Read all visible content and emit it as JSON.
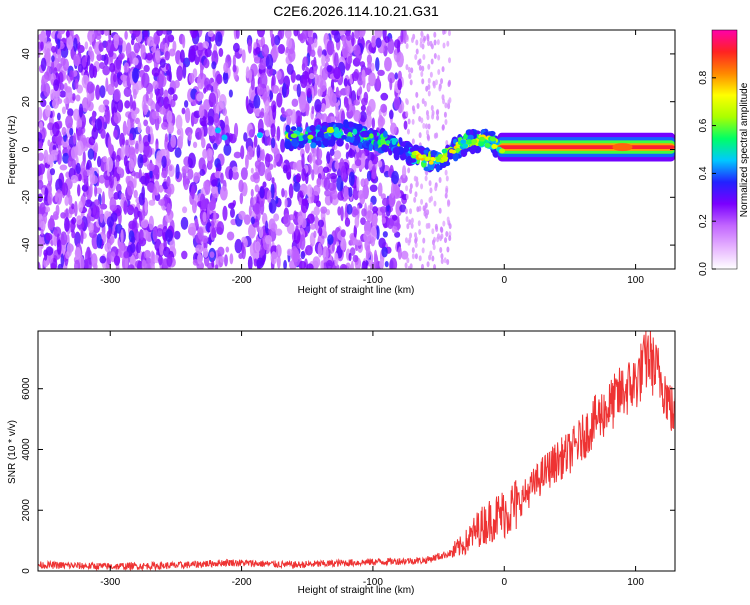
{
  "title": "C2E6.2026.114.10.21.G31",
  "chart_data": [
    {
      "type": "heatmap",
      "xlabel": "Height of straight line (km)",
      "ylabel": "Frequency (Hz)",
      "xlim": [
        -355,
        130
      ],
      "ylim": [
        -50,
        50
      ],
      "x_ticks": [
        -300,
        -200,
        -100,
        0,
        100
      ],
      "y_ticks": [
        -40,
        -20,
        0,
        20,
        40
      ],
      "x_tick_labels": [
        "-300",
        "-200",
        "-100",
        "0",
        "100"
      ],
      "y_tick_labels": [
        "-40",
        "-20",
        "0",
        "20",
        "40"
      ],
      "colorbar": {
        "label": "Normalized spectral amplitude",
        "range": [
          0,
          1
        ],
        "ticks": [
          0.0,
          0.2,
          0.4,
          0.6,
          0.8
        ],
        "tick_labels": [
          "0.0",
          "0.2",
          "0.4",
          "0.6",
          "0.8"
        ],
        "colors": [
          "#ffffff",
          "#e6b3ff",
          "#c266ff",
          "#7a00ff",
          "#2222ff",
          "#00c8ff",
          "#00ff66",
          "#aaff00",
          "#ffff00",
          "#ff8800",
          "#ff2222",
          "#ff00aa"
        ]
      },
      "ridge": {
        "description_points_x": [
          -160,
          -120,
          -90,
          -70,
          -55,
          -45,
          -30,
          -15,
          0,
          50,
          90,
          130
        ],
        "description_points_y": [
          5,
          7,
          3,
          -2,
          -5,
          -3,
          3,
          4,
          1,
          1,
          1,
          1
        ]
      }
    },
    {
      "type": "line",
      "xlabel": "Height of straight line (km)",
      "ylabel": "SNR (10 * v/v)",
      "xlim": [
        -355,
        130
      ],
      "ylim": [
        0,
        7900
      ],
      "x_ticks": [
        -300,
        -200,
        -100,
        0,
        100
      ],
      "y_ticks": [
        0,
        2000,
        4000,
        6000
      ],
      "x_tick_labels": [
        "-300",
        "-200",
        "-100",
        "0",
        "100"
      ],
      "y_tick_labels": [
        "0",
        "2000",
        "4000",
        "6000"
      ],
      "series_color": "#ee3333",
      "x": [
        -355,
        -300,
        -250,
        -210,
        -160,
        -100,
        -60,
        -40,
        -30,
        -20,
        -10,
        0,
        10,
        20,
        30,
        40,
        50,
        60,
        70,
        80,
        90,
        100,
        110,
        115,
        120,
        125,
        130
      ],
      "y": [
        200,
        150,
        180,
        280,
        200,
        300,
        350,
        600,
        900,
        1400,
        1700,
        1900,
        2200,
        2700,
        3200,
        3600,
        3900,
        4400,
        5000,
        5400,
        5900,
        6200,
        7100,
        6600,
        6300,
        5600,
        5000
      ]
    }
  ]
}
